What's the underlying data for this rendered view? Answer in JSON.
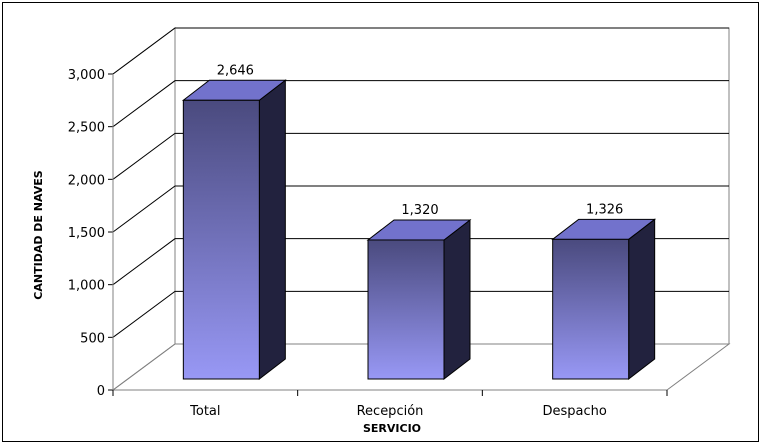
{
  "chart_data": {
    "type": "bar",
    "three_d": true,
    "categories": [
      "Total",
      "Recepción",
      "Despacho"
    ],
    "values": [
      2646,
      1320,
      1326
    ],
    "value_labels": [
      "2,646",
      "1,320",
      "1,326"
    ],
    "xlabel": "SERVICIO",
    "ylabel": "CANTIDAD DE NAVES",
    "ylim": [
      0,
      3000
    ],
    "yticks": [
      0,
      500,
      1000,
      1500,
      2000,
      2500,
      3000
    ],
    "ytick_labels": [
      "0",
      "500",
      "1,000",
      "1,500",
      "2,000",
      "2,500",
      "3,000"
    ],
    "grid": true,
    "legend": "none",
    "colors": {
      "bar_top": "#4a4a7e",
      "bar_bottom": "#9898f5",
      "bar_side": "#22223e",
      "bar_cap": "#7272cc",
      "gridline": "#000000"
    }
  }
}
